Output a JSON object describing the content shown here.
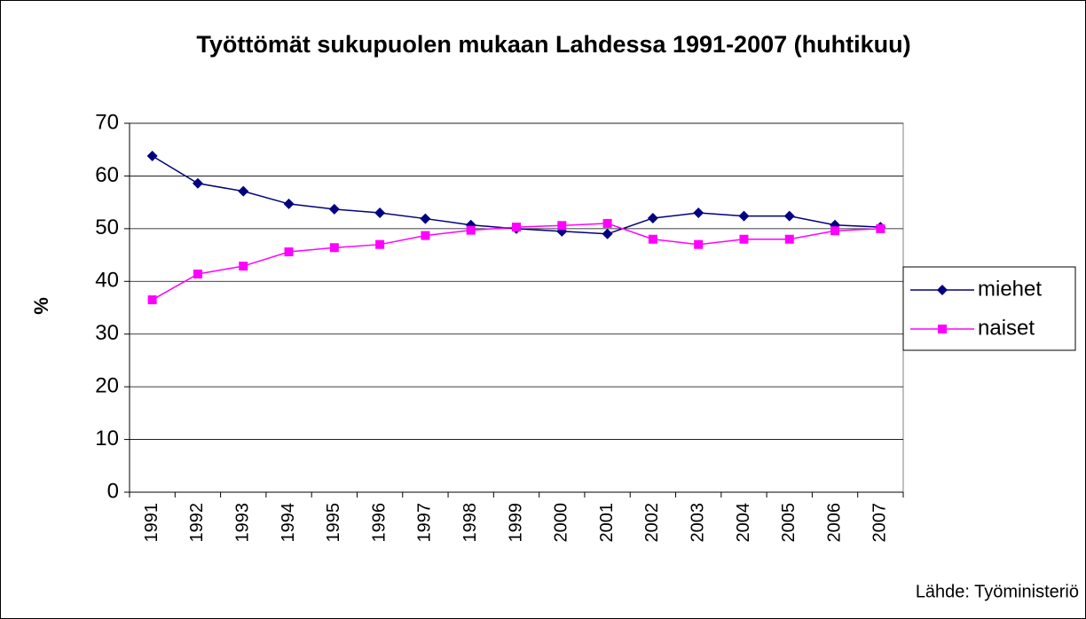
{
  "chart_data": {
    "type": "line",
    "title": "Työttömät sukupuolen mukaan Lahdessa 1991-2007 (huhtikuu)",
    "y_label": "%",
    "source": "Lähde: Työministeriö",
    "categories": [
      "1991",
      "1992",
      "1993",
      "1994",
      "1995",
      "1996",
      "1997",
      "1998",
      "1999",
      "2000",
      "2001",
      "2002",
      "2003",
      "2004",
      "2005",
      "2006",
      "2007"
    ],
    "series": [
      {
        "name": "miehet",
        "color": "#000080",
        "marker": "diamond",
        "values": [
          63.8,
          58.6,
          57.1,
          54.7,
          53.7,
          53.0,
          51.9,
          50.7,
          50.0,
          49.5,
          49.0,
          52.0,
          53.0,
          52.4,
          52.4,
          50.7,
          50.3
        ]
      },
      {
        "name": "naiset",
        "color": "#ff00ff",
        "marker": "square",
        "values": [
          36.5,
          41.4,
          42.9,
          45.6,
          46.4,
          47.0,
          48.7,
          49.7,
          50.3,
          50.6,
          51.0,
          48.0,
          47.0,
          48.0,
          48.0,
          49.6,
          50.0
        ]
      }
    ],
    "ylim": [
      0,
      70
    ],
    "yticks": [
      0,
      10,
      20,
      30,
      40,
      50,
      60,
      70
    ],
    "grid": true,
    "legend": "right"
  }
}
